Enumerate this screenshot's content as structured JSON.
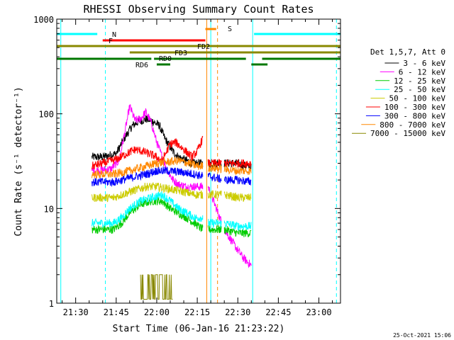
{
  "chart_data": {
    "type": "line",
    "title": "RHESSI Observing Summary Count Rates",
    "xlabel": "Start Time (06-Jan-16 21:23:22)",
    "ylabel": "Count Rate (s⁻¹ detector⁻¹)",
    "yscale": "log",
    "ylim": [
      1,
      1000
    ],
    "xlim_min": [
      1283,
      1388
    ],
    "xtick_values_min": [
      1290,
      1305,
      1320,
      1335,
      1350,
      1365,
      1380
    ],
    "xtick_labels": [
      "21:30",
      "21:45",
      "22:00",
      "22:15",
      "22:30",
      "22:45",
      "23:00"
    ],
    "ytick_values": [
      1,
      10,
      100,
      1000
    ],
    "ytick_labels": [
      "1",
      "10",
      "100",
      "1000"
    ],
    "legend_header": "Det 1,5,7, Att 0",
    "legend_position": "right",
    "footer_date": "25-Oct-2021 15:06",
    "gaps_min": [
      [
        1283,
        1296
      ],
      [
        1337,
        1339
      ],
      [
        1344,
        1345
      ],
      [
        1355,
        1388
      ]
    ],
    "series": [
      {
        "name": "3 - 6 keV",
        "color": "#000000",
        "times": [
          1296,
          1300,
          1305,
          1308,
          1311,
          1313,
          1316,
          1318,
          1321,
          1323,
          1326,
          1328,
          1331,
          1334,
          1337,
          1339,
          1345,
          1350,
          1355
        ],
        "values": [
          35,
          35,
          38,
          55,
          75,
          82,
          88,
          85,
          75,
          55,
          40,
          35,
          32,
          30,
          30,
          30,
          30,
          30,
          27
        ]
      },
      {
        "name": "6 - 12 keV",
        "color": "#ff00ff",
        "times": [
          1296,
          1303,
          1306,
          1308,
          1310,
          1312,
          1314,
          1316,
          1318,
          1320,
          1322,
          1324,
          1326,
          1328,
          1331,
          1334,
          1337,
          1339,
          1345,
          1349,
          1352,
          1355
        ],
        "values": [
          25,
          26,
          32,
          60,
          120,
          85,
          88,
          105,
          80,
          50,
          35,
          25,
          20,
          18,
          17,
          17,
          17,
          17,
          6,
          4,
          3,
          2.5
        ]
      },
      {
        "name": "12 - 25 keV",
        "color": "#00cc00",
        "times": [
          1296,
          1304,
          1307,
          1310,
          1314,
          1318,
          1322,
          1325,
          1328,
          1331,
          1334,
          1337,
          1339,
          1345,
          1350,
          1355
        ],
        "values": [
          6,
          6,
          7,
          9,
          11,
          12,
          12,
          10,
          9,
          8,
          7,
          6,
          6,
          6,
          5.5,
          5.5
        ]
      },
      {
        "name": "25 - 50 keV",
        "color": "#00ffff",
        "times": [
          1296,
          1304,
          1307,
          1310,
          1314,
          1318,
          1322,
          1325,
          1328,
          1331,
          1334,
          1337,
          1339,
          1345,
          1350,
          1355
        ],
        "values": [
          7,
          7,
          8,
          10,
          12,
          13,
          14,
          12,
          10,
          9,
          8,
          8,
          7,
          7,
          6.5,
          6.5
        ]
      },
      {
        "name": "50 - 100 keV",
        "color": "#cccc00",
        "times": [
          1296,
          1304,
          1310,
          1316,
          1320,
          1325,
          1330,
          1334,
          1337,
          1339,
          1345,
          1350,
          1355
        ],
        "values": [
          13,
          13,
          15,
          17,
          17,
          16,
          15,
          14,
          14,
          14,
          14,
          13,
          13
        ]
      },
      {
        "name": "100 - 300 keV",
        "color": "#ff0000",
        "times": [
          1296,
          1300,
          1305,
          1309,
          1312,
          1315,
          1319,
          1322,
          1325,
          1327,
          1330,
          1333,
          1335,
          1337,
          1338,
          1339,
          1345,
          1350,
          1355
        ],
        "values": [
          28,
          30,
          33,
          38,
          42,
          40,
          36,
          32,
          48,
          50,
          42,
          35,
          40,
          55,
          60,
          30,
          30,
          30,
          30
        ]
      },
      {
        "name": "300 - 800 keV",
        "color": "#0000ff",
        "times": [
          1296,
          1304,
          1310,
          1316,
          1320,
          1324,
          1330,
          1334,
          1337,
          1339,
          1345,
          1350,
          1355
        ],
        "values": [
          19,
          19,
          21,
          23,
          25,
          25,
          24,
          23,
          22,
          22,
          20,
          20,
          19
        ]
      },
      {
        "name": "800 - 7000 keV",
        "color": "#ff8800",
        "times": [
          1296,
          1304,
          1310,
          1316,
          1320,
          1324,
          1328,
          1332,
          1335,
          1337,
          1339,
          1345,
          1350,
          1355
        ],
        "values": [
          23,
          23,
          25,
          28,
          30,
          31,
          32,
          30,
          28,
          28,
          27,
          26,
          25,
          25
        ]
      },
      {
        "name": "7000 - 15000 keV",
        "color": "#888800",
        "times": [
          1314,
          1326
        ],
        "values": [
          2,
          2
        ]
      }
    ],
    "annotations": [
      {
        "label": "N",
        "color": "#00ffff",
        "bars": [
          [
            1283,
            1298
          ],
          [
            1356,
            1388
          ]
        ]
      },
      {
        "label": "F",
        "color": "#ff0000",
        "bars": [
          [
            1300,
            1338
          ]
        ]
      },
      {
        "label": "FD2",
        "color": "#888800",
        "bars": [
          [
            1283,
            1388
          ]
        ]
      },
      {
        "label": "FD3",
        "color": "#888800",
        "bars": [
          [
            1310,
            1388
          ]
        ]
      },
      {
        "label": "RD0",
        "color": "#007700",
        "bars": [
          [
            1283,
            1318
          ],
          [
            1319,
            1353
          ],
          [
            1359,
            1388
          ]
        ]
      },
      {
        "label": "RD6",
        "color": "#007700",
        "bars": [
          [
            1320,
            1325
          ],
          [
            1355,
            1361
          ]
        ]
      },
      {
        "label": "S",
        "color": "#ff8800",
        "bars": [
          [
            1338,
            1342
          ]
        ]
      }
    ],
    "vertical_markers_min": [
      {
        "time": 1284.5,
        "color": "#00ffff",
        "style": "solid"
      },
      {
        "time": 1301,
        "color": "#00ffff",
        "style": "dashed"
      },
      {
        "time": 1338.5,
        "color": "#ff8800",
        "style": "solid"
      },
      {
        "time": 1340,
        "color": "#00ffff",
        "style": "solid"
      },
      {
        "time": 1342.5,
        "color": "#ff8800",
        "style": "dashed"
      },
      {
        "time": 1355.5,
        "color": "#00ffff",
        "style": "solid"
      },
      {
        "time": 1386.5,
        "color": "#00ffff",
        "style": "dashed"
      }
    ]
  }
}
